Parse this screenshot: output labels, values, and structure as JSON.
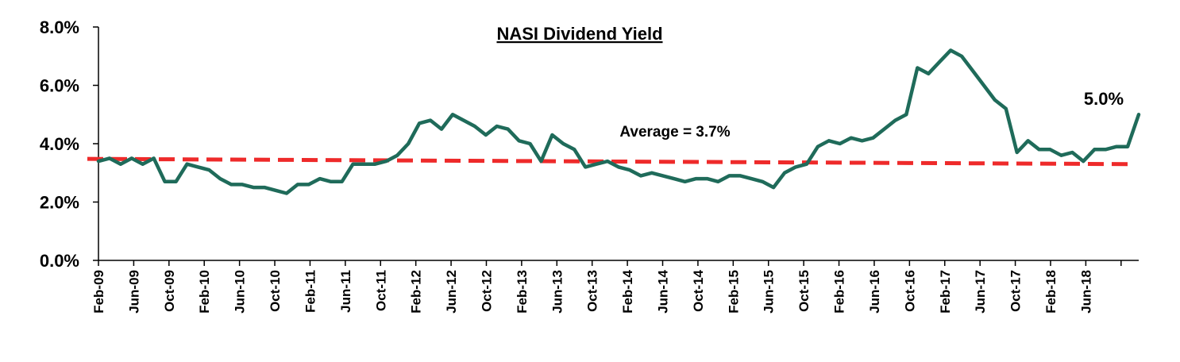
{
  "chart_data": {
    "type": "line",
    "title": "NASI Dividend Yield",
    "xlabel": "",
    "ylabel": "",
    "y_range": [
      0,
      8
    ],
    "y_tick_labels": [
      "0.0%",
      "2.0%",
      "4.0%",
      "6.0%",
      "8.0%"
    ],
    "x_tick_labels": [
      "Feb-09",
      "Jun-09",
      "Oct-09",
      "Feb-10",
      "Jun-10",
      "Oct-10",
      "Feb-11",
      "Jun-11",
      "Oct-11",
      "Feb-12",
      "Jun-12",
      "Oct-12",
      "Feb-13",
      "Jun-13",
      "Oct-13",
      "Feb-14",
      "Jun-14",
      "Oct-14",
      "Feb-15",
      "Jun-15",
      "Oct-15",
      "Feb-16",
      "Jun-16",
      "Oct-16",
      "Feb-17",
      "Jun-17",
      "Oct-17",
      "Feb-18",
      "Jun-18"
    ],
    "grid": false,
    "legend": "none",
    "colors": {
      "series": "#1f6b5a",
      "average": "#ee2a2a"
    },
    "series": [
      {
        "values": [
          [
            0,
            3.4
          ],
          [
            1,
            3.5
          ],
          [
            2,
            3.3
          ],
          [
            3,
            3.5
          ],
          [
            4,
            3.3
          ],
          [
            5,
            3.5
          ],
          [
            6,
            2.7
          ],
          [
            7,
            2.7
          ],
          [
            8,
            3.3
          ],
          [
            9,
            3.2
          ],
          [
            10,
            3.1
          ],
          [
            11,
            2.8
          ],
          [
            12,
            2.6
          ],
          [
            13,
            2.6
          ],
          [
            14,
            2.5
          ],
          [
            15,
            2.5
          ],
          [
            16,
            2.4
          ],
          [
            17,
            2.3
          ],
          [
            18,
            2.6
          ],
          [
            19,
            2.6
          ],
          [
            20,
            2.8
          ],
          [
            21,
            2.7
          ],
          [
            22,
            2.7
          ],
          [
            23,
            3.3
          ],
          [
            24,
            3.3
          ],
          [
            25,
            3.3
          ],
          [
            26,
            3.4
          ],
          [
            27,
            3.6
          ],
          [
            28,
            4.0
          ],
          [
            29,
            4.7
          ],
          [
            30,
            4.8
          ],
          [
            31,
            4.5
          ],
          [
            32,
            5.0
          ],
          [
            33,
            4.8
          ],
          [
            34,
            4.6
          ],
          [
            35,
            4.3
          ],
          [
            36,
            4.6
          ],
          [
            37,
            4.5
          ],
          [
            38,
            4.1
          ],
          [
            39,
            4.0
          ],
          [
            40,
            3.4
          ],
          [
            41,
            4.3
          ],
          [
            42,
            4.0
          ],
          [
            43,
            3.8
          ],
          [
            44,
            3.2
          ],
          [
            45,
            3.3
          ],
          [
            46,
            3.4
          ],
          [
            47,
            3.2
          ],
          [
            48,
            3.1
          ],
          [
            49,
            2.9
          ],
          [
            50,
            3.0
          ],
          [
            51,
            2.9
          ],
          [
            52,
            2.8
          ],
          [
            53,
            2.7
          ],
          [
            54,
            2.8
          ],
          [
            55,
            2.8
          ],
          [
            56,
            2.7
          ],
          [
            57,
            2.9
          ],
          [
            58,
            2.9
          ],
          [
            59,
            2.8
          ],
          [
            60,
            2.7
          ],
          [
            61,
            2.5
          ],
          [
            62,
            3.0
          ],
          [
            63,
            3.2
          ],
          [
            64,
            3.3
          ],
          [
            65,
            3.9
          ],
          [
            66,
            4.1
          ],
          [
            67,
            4.0
          ],
          [
            68,
            4.2
          ],
          [
            69,
            4.1
          ],
          [
            70,
            4.2
          ],
          [
            71,
            4.5
          ],
          [
            72,
            4.8
          ],
          [
            73,
            5.0
          ],
          [
            74,
            6.6
          ],
          [
            75,
            6.4
          ],
          [
            76,
            6.8
          ],
          [
            77,
            7.2
          ],
          [
            78,
            7.0
          ],
          [
            79,
            6.5
          ],
          [
            80,
            6.0
          ],
          [
            81,
            5.5
          ],
          [
            82,
            5.2
          ],
          [
            83,
            3.7
          ],
          [
            84,
            4.1
          ],
          [
            85,
            3.8
          ],
          [
            86,
            3.8
          ],
          [
            87,
            3.6
          ],
          [
            88,
            3.7
          ],
          [
            89,
            3.4
          ],
          [
            90,
            3.8
          ],
          [
            91,
            3.8
          ],
          [
            92,
            3.9
          ],
          [
            93,
            3.9
          ],
          [
            94,
            5.0
          ]
        ]
      }
    ],
    "average_line": {
      "value": 3.7,
      "label": "Average = 3.7%",
      "start_value": 3.48,
      "end_value": 3.3
    },
    "end_label": "5.0%"
  }
}
